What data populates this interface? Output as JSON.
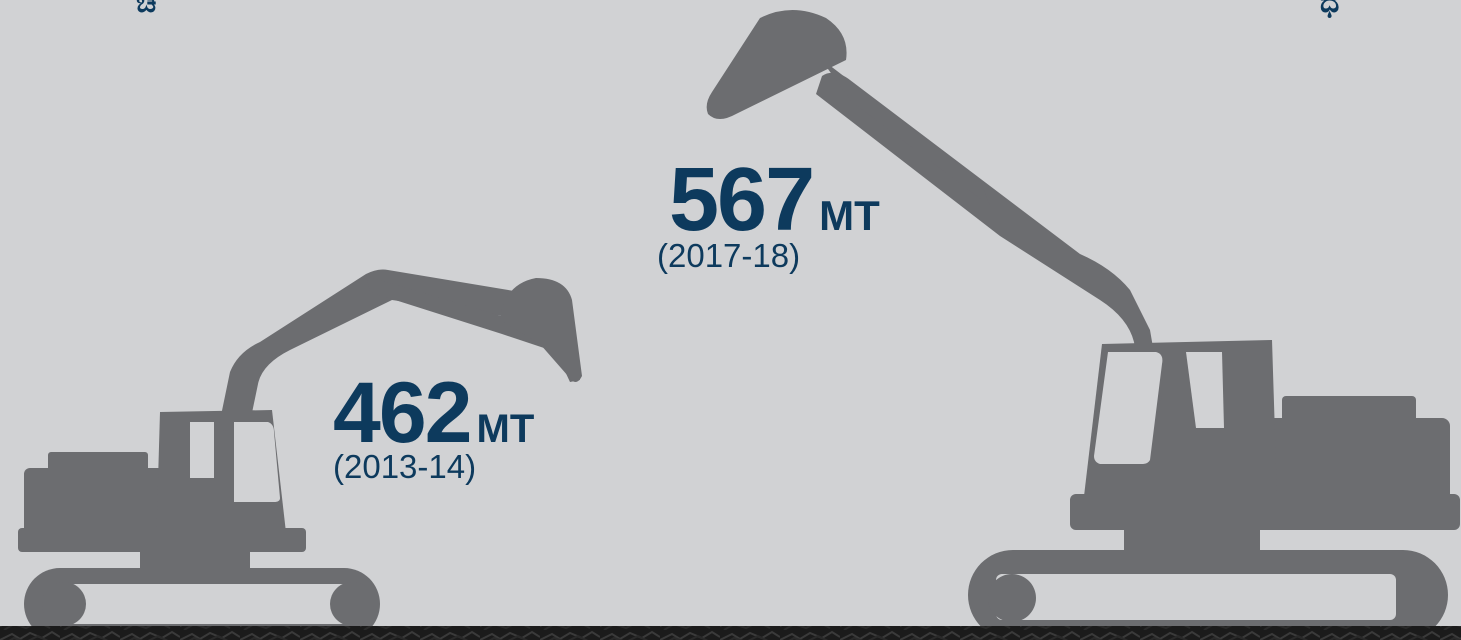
{
  "stats": [
    {
      "value": "462",
      "unit": "MT",
      "period": "(2013-14)"
    },
    {
      "value": "567",
      "unit": "MT",
      "period": "(2017-18)"
    }
  ],
  "colors": {
    "background": "#d1d2d4",
    "excavator": "#6c6d70",
    "text": "#0d3a5d",
    "ground": "#1b1b1b"
  },
  "icons": [
    "small-excavator-icon",
    "large-excavator-icon",
    "coal-ground"
  ]
}
